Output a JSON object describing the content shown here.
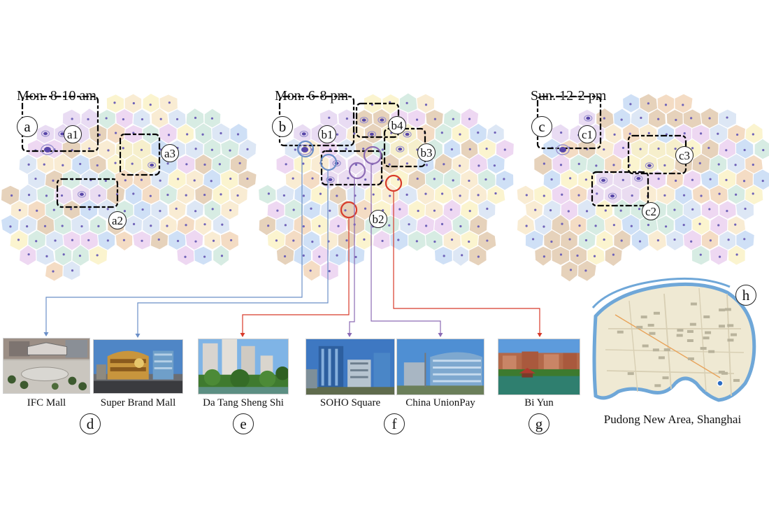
{
  "panels": [
    {
      "letter": "a",
      "title": "Mon. 8-10 am",
      "clusters": [
        "a1",
        "a2",
        "a3"
      ]
    },
    {
      "letter": "b",
      "title": "Mon. 6-8 pm",
      "clusters": [
        "b1",
        "b2",
        "b3",
        "b4"
      ]
    },
    {
      "letter": "c",
      "title": "Sun. 12-2 pm",
      "clusters": [
        "c1",
        "c2",
        "c3"
      ]
    }
  ],
  "photo_groups": [
    {
      "letter": "d",
      "places": [
        "IFC Mall",
        "Super Brand Mall"
      ]
    },
    {
      "letter": "e",
      "places": [
        "Da Tang Sheng Shi"
      ]
    },
    {
      "letter": "f",
      "places": [
        "SOHO Square",
        "China UnionPay"
      ]
    },
    {
      "letter": "g",
      "places": [
        "Bi Yun"
      ]
    }
  ],
  "location_map": {
    "letter": "h",
    "caption": "Pudong New Area, Shanghai"
  },
  "colors": {
    "cell_palette": [
      "#f4dcc4",
      "#fbf4cf",
      "#cfe0f6",
      "#d7ece3",
      "#e6d2bb",
      "#eed8f2",
      "#f9ecd3",
      "#dde7f5"
    ],
    "hotspot_dot": "#5746a8",
    "hotspot_ring": "#9c93d0",
    "cluster_outline": "#000000",
    "marker_blue": "#6b8fc8",
    "marker_purple": "#8c6bb5",
    "marker_red": "#d83a2a",
    "river": "#6fa7d8",
    "map_land": "#efe9d3"
  }
}
